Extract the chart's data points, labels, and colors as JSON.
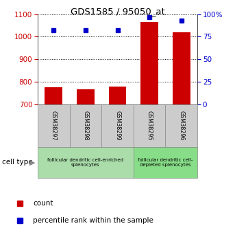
{
  "title": "GDS1585 / 95050_at",
  "samples": [
    "GSM38297",
    "GSM38298",
    "GSM38299",
    "GSM38295",
    "GSM38296"
  ],
  "counts": [
    775,
    768,
    778,
    1065,
    1020
  ],
  "percentiles": [
    82,
    82,
    82,
    97,
    93
  ],
  "ylim_left": [
    700,
    1100
  ],
  "ylim_right": [
    0,
    100
  ],
  "yticks_left": [
    700,
    800,
    900,
    1000,
    1100
  ],
  "yticks_right": [
    0,
    25,
    50,
    75,
    100
  ],
  "bar_color": "#cc0000",
  "dot_color": "#0000cc",
  "groups": [
    {
      "label": "follicular dendritic cell-enriched\nsplenocytes",
      "color": "#aaddaa"
    },
    {
      "label": "follicular dendritic cell-\ndepleted splenocytes",
      "color": "#88dd88"
    }
  ],
  "group_ranges": [
    [
      0,
      2
    ],
    [
      3,
      4
    ]
  ],
  "tick_label_color_left": "#cc0000",
  "tick_label_color_right": "#0000cc",
  "cell_type_label": "cell type",
  "legend_count_label": "count",
  "legend_percentile_label": "percentile rank within the sample",
  "plot_bg_color": "#ffffff",
  "bar_width": 0.55,
  "sample_box_color": "#cccccc"
}
